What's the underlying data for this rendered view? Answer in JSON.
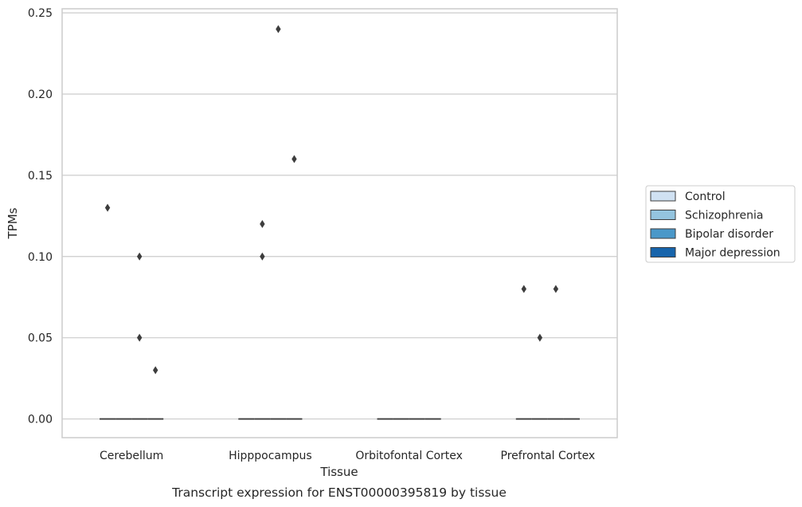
{
  "chart_data": {
    "type": "box",
    "title": "Transcript expression for ENST00000395819 by tissue",
    "xlabel": "Tissue",
    "ylabel": "TPMs",
    "ylim": [
      -0.0115,
      0.2525
    ],
    "yticks": [
      "0.00",
      "0.05",
      "0.10",
      "0.15",
      "0.20",
      "0.25"
    ],
    "ytick_values": [
      0,
      0.05,
      0.1,
      0.15,
      0.2,
      0.25
    ],
    "grid": "horizontal",
    "legend_position": "right",
    "categories": [
      "Cerebellum",
      "Hipppocampus",
      "Orbitofontal Cortex",
      "Prefrontal Cortex"
    ],
    "series": [
      {
        "name": "Control",
        "color": "#d0e1f2",
        "boxes": [
          {
            "median": 0,
            "q1": 0,
            "q3": 0
          },
          {
            "median": 0,
            "q1": 0,
            "q3": 0
          },
          {
            "median": 0,
            "q1": 0,
            "q3": 0
          },
          {
            "median": 0,
            "q1": 0,
            "q3": 0
          }
        ],
        "outliers": [
          [
            0.13
          ],
          [],
          [],
          [
            0.08
          ]
        ]
      },
      {
        "name": "Schizophrenia",
        "color": "#94c4df",
        "boxes": [
          {
            "median": 0,
            "q1": 0,
            "q3": 0
          },
          {
            "median": 0,
            "q1": 0,
            "q3": 0
          },
          {
            "median": 0,
            "q1": 0,
            "q3": 0
          },
          {
            "median": 0,
            "q1": 0,
            "q3": 0
          }
        ],
        "outliers": [
          [],
          [
            0.12,
            0.1
          ],
          [],
          [
            0.05
          ]
        ]
      },
      {
        "name": "Bipolar disorder",
        "color": "#4a98c9",
        "boxes": [
          {
            "median": 0,
            "q1": 0,
            "q3": 0
          },
          {
            "median": 0,
            "q1": 0,
            "q3": 0
          },
          {
            "median": 0,
            "q1": 0,
            "q3": 0
          },
          {
            "median": 0,
            "q1": 0,
            "q3": 0
          }
        ],
        "outliers": [
          [
            0.1,
            0.05
          ],
          [
            0.24
          ],
          [],
          [
            0.08
          ]
        ]
      },
      {
        "name": "Major depression",
        "color": "#1764ab",
        "boxes": [
          {
            "median": 0,
            "q1": 0,
            "q3": 0
          },
          {
            "median": 0,
            "q1": 0,
            "q3": 0
          },
          {
            "median": 0,
            "q1": 0,
            "q3": 0
          },
          {
            "median": 0,
            "q1": 0,
            "q3": 0
          }
        ],
        "outliers": [
          [
            0.03
          ],
          [
            0.16
          ],
          [],
          []
        ]
      }
    ]
  }
}
